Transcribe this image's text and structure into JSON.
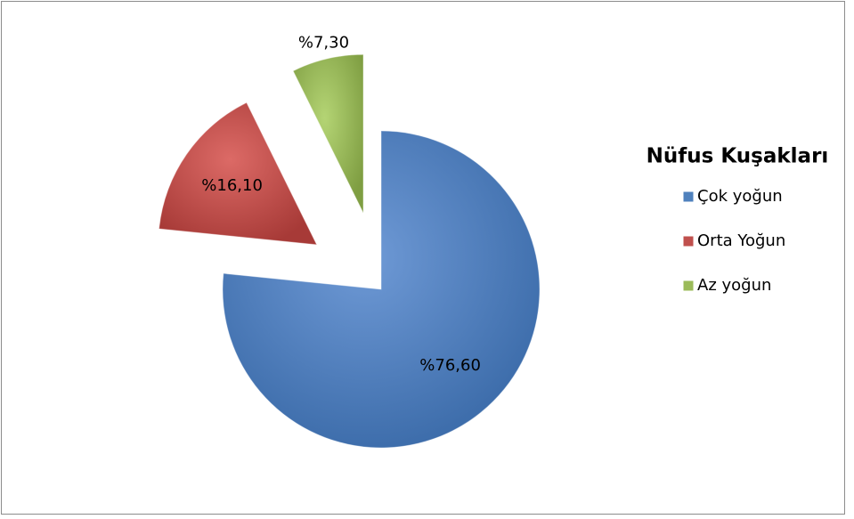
{
  "chart_data": {
    "type": "pie",
    "legend_title": "Nüfus Kuşakları",
    "categories": [
      "Çok yoğun",
      "Orta Yoğun",
      "Az yoğun"
    ],
    "values": [
      76.6,
      16.1,
      7.3
    ],
    "value_labels": [
      "%76,60",
      "%16,10",
      "%7,30"
    ],
    "colors": [
      "#4f81bd",
      "#c0504d",
      "#9bbb59"
    ],
    "legend": "right"
  }
}
